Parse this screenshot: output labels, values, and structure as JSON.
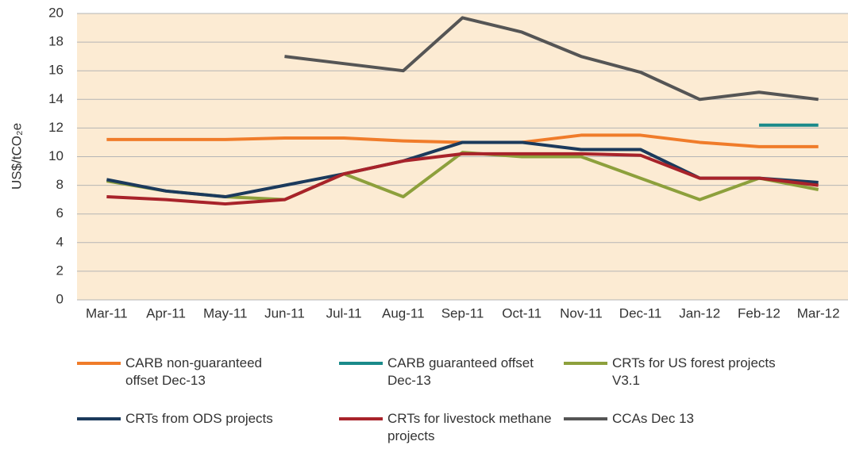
{
  "chart_data": {
    "type": "line",
    "y_label": "US$/tCO₂e",
    "categories": [
      "Mar-11",
      "Apr-11",
      "May-11",
      "Jun-11",
      "Jul-11",
      "Aug-11",
      "Sep-11",
      "Oct-11",
      "Nov-11",
      "Dec-11",
      "Jan-12",
      "Feb-12",
      "Mar-12"
    ],
    "series": [
      {
        "name": "CARB non-guaranteed offset  Dec-13",
        "color": "#f07c2a",
        "values": [
          11.2,
          11.2,
          11.2,
          11.3,
          11.3,
          11.1,
          11.0,
          11.0,
          11.5,
          11.5,
          11.0,
          10.7,
          10.7
        ]
      },
      {
        "name": "CARB guaranteed offset Dec-13",
        "color": "#1a8a8a",
        "values": [
          null,
          null,
          null,
          null,
          null,
          null,
          null,
          null,
          null,
          null,
          null,
          12.2,
          12.2
        ]
      },
      {
        "name": "CRTs for US forest projects V3.1",
        "color": "#8da03c",
        "values": [
          8.3,
          7.6,
          7.2,
          7.0,
          8.8,
          7.2,
          10.3,
          10.0,
          10.0,
          8.5,
          7.0,
          8.5,
          7.7
        ]
      },
      {
        "name": "CRTs from ODS projects",
        "color": "#1b3a5c",
        "values": [
          8.4,
          7.6,
          7.2,
          8.0,
          8.8,
          9.7,
          11.0,
          11.0,
          10.5,
          10.5,
          8.5,
          8.5,
          8.2
        ]
      },
      {
        "name": "CRTs for livestock methane projects",
        "color": "#a8232a",
        "values": [
          7.2,
          7.0,
          6.7,
          7.0,
          8.8,
          9.7,
          10.2,
          10.2,
          10.2,
          10.1,
          8.5,
          8.5,
          8.0
        ]
      },
      {
        "name": "CCAs Dec 13",
        "color": "#555555",
        "values": [
          null,
          null,
          null,
          17.0,
          16.5,
          16.0,
          19.7,
          18.7,
          17.0,
          15.9,
          14.0,
          14.5,
          14.0
        ]
      }
    ],
    "ylim": [
      0,
      20
    ],
    "yticks": [
      0,
      2,
      4,
      6,
      8,
      10,
      12,
      14,
      16,
      18,
      20
    ],
    "grid": true
  }
}
